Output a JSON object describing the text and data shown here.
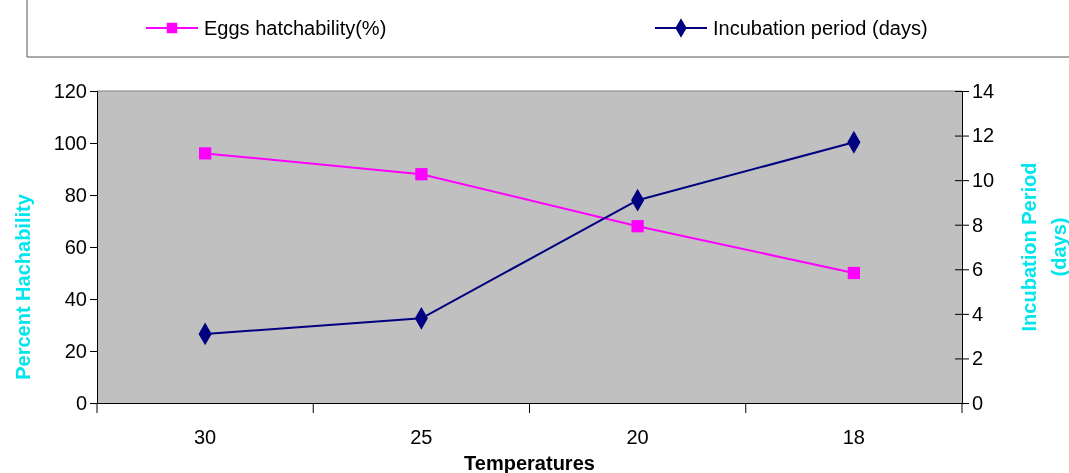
{
  "chart_data": {
    "type": "line",
    "xlabel": "Temperatures",
    "ylabel": "Percent Hachability",
    "y2label": "Incubation Period (days)",
    "categories": [
      "30",
      "25",
      "20",
      "18"
    ],
    "series": [
      {
        "name": "Eggs hatchability(%)",
        "color": "#ff00ff",
        "marker": "square",
        "values": [
          96,
          88,
          68,
          50
        ]
      },
      {
        "name": "Incubation period (days)",
        "color": "#000080",
        "marker": "diamond",
        "axis": "y2",
        "values": [
          3.1,
          3.8,
          9.1,
          11.7
        ]
      }
    ],
    "ylim": [
      0,
      120
    ],
    "yticks": [
      0,
      20,
      40,
      60,
      80,
      100,
      120
    ],
    "y2lim": [
      0,
      14
    ],
    "y2ticks": [
      0,
      2,
      4,
      6,
      8,
      10,
      12,
      14
    ],
    "legend": "top",
    "grid": false
  }
}
